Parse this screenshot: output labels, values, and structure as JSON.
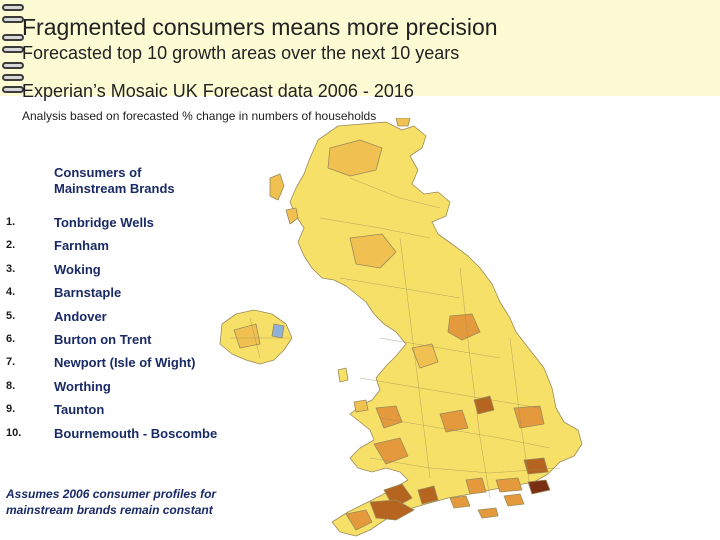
{
  "header": {
    "title": "Fragmented consumers means more precision",
    "subtitle_1": "Forecasted top 10 growth areas over the next 10 years",
    "subtitle_2": "Experian’s Mosaic UK Forecast data 2006 - 2016",
    "note": "Analysis based on forecasted % change in numbers of households"
  },
  "list": {
    "heading_line_1": "Consumers of",
    "heading_line_2": "Mainstream Brands",
    "items": [
      {
        "rank": "1.",
        "name": "Tonbridge Wells"
      },
      {
        "rank": "2.",
        "name": "Farnham"
      },
      {
        "rank": "3.",
        "name": "Woking"
      },
      {
        "rank": "4.",
        "name": "Barnstaple"
      },
      {
        "rank": "5.",
        "name": "Andover"
      },
      {
        "rank": "6.",
        "name": "Burton on Trent"
      },
      {
        "rank": "7.",
        "name": "Newport (Isle of Wight)"
      },
      {
        "rank": "8.",
        "name": "Worthing"
      },
      {
        "rank": "9.",
        "name": "Taunton"
      },
      {
        "rank": "10.",
        "name": "Bournemouth - Boscombe"
      }
    ]
  },
  "footnote": {
    "line_1": "Assumes 2006 consumer profiles for",
    "line_2": "mainstream brands remain constant"
  },
  "map_colors": {
    "land_light": "#f7e067",
    "land_mid": "#f0c150",
    "land_orange": "#e49a3c",
    "land_dark": "#b5651f",
    "land_darkest": "#7a2e14",
    "water": "#8fb0d8",
    "border": "#9a8a5a"
  }
}
